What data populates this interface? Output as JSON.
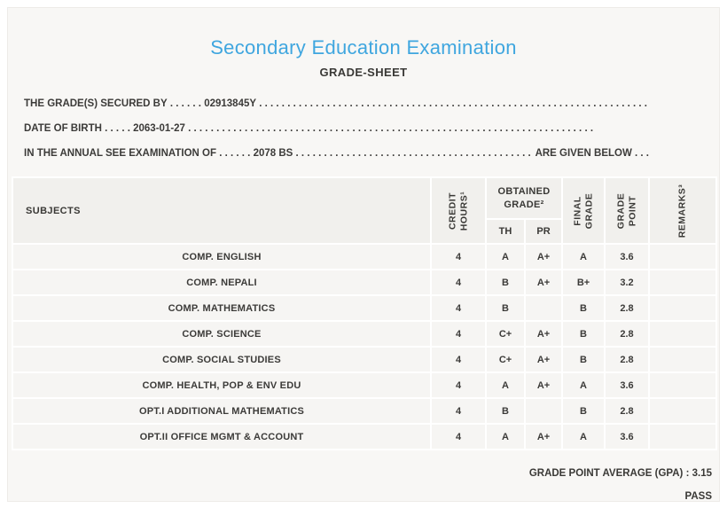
{
  "page": {
    "title": "Secondary Education Examination",
    "subtitle": "GRADE-SHEET"
  },
  "info_lines": [
    {
      "label": "THE GRADE(S) SECURED BY",
      "lead_dots": " . . . . . . ",
      "value": "02913845Y",
      "tail_dots": " . . . . . . . . . . . . . . . . . . . . . . . . . . . . . . . . . . . . . . . . . . . . . . . . . . . . . . . . . . . . . . . . . . . . . . . . ",
      "trail_label": ""
    },
    {
      "label": "DATE OF BIRTH",
      "lead_dots": " . . . . . ",
      "value": "2063-01-27",
      "tail_dots": " . . . . . . . . . . . . . . . . . . . . . . . . . . . . . . . . . . . . . . . . . . . . . . . . . . . . . . . . . . . . . . . . . . . . . . . . ",
      "trail_label": ""
    },
    {
      "label": "IN THE ANNUAL SEE EXAMINATION OF",
      "lead_dots": " . . . . . . ",
      "value": "2078 BS",
      "tail_dots": " . . . . . . . . . . . . . . . . . . . . . . . . . . . . . . . . . . . . . . . . . . . . . . . . . . . . . . . . . . . . . . . . . . . . . . . . ",
      "trail_label": " ARE GIVEN BELOW . . ."
    }
  ],
  "table": {
    "headers": {
      "subjects": "SUBJECTS",
      "credit_hours": "CREDIT\nHOURS¹",
      "obtained_grade": "OBTAINED\nGRADE²",
      "th": "TH",
      "pr": "PR",
      "final_grade": "FINAL\nGRADE",
      "grade_point": "GRADE\nPOINT",
      "remarks": "REMARKS³"
    },
    "rows": [
      {
        "subject": "COMP. ENGLISH",
        "credit": "4",
        "th": "A",
        "pr": "A+",
        "final": "A",
        "point": "3.6",
        "remarks": ""
      },
      {
        "subject": "COMP. NEPALI",
        "credit": "4",
        "th": "B",
        "pr": "A+",
        "final": "B+",
        "point": "3.2",
        "remarks": ""
      },
      {
        "subject": "COMP. MATHEMATICS",
        "credit": "4",
        "th": "B",
        "pr": "",
        "final": "B",
        "point": "2.8",
        "remarks": ""
      },
      {
        "subject": "COMP. SCIENCE",
        "credit": "4",
        "th": "C+",
        "pr": "A+",
        "final": "B",
        "point": "2.8",
        "remarks": ""
      },
      {
        "subject": "COMP. SOCIAL STUDIES",
        "credit": "4",
        "th": "C+",
        "pr": "A+",
        "final": "B",
        "point": "2.8",
        "remarks": ""
      },
      {
        "subject": "COMP. HEALTH, POP & ENV EDU",
        "credit": "4",
        "th": "A",
        "pr": "A+",
        "final": "A",
        "point": "3.6",
        "remarks": ""
      },
      {
        "subject": "OPT.I ADDITIONAL MATHEMATICS",
        "credit": "4",
        "th": "B",
        "pr": "",
        "final": "B",
        "point": "2.8",
        "remarks": ""
      },
      {
        "subject": "OPT.II OFFICE MGMT & ACCOUNT",
        "credit": "4",
        "th": "A",
        "pr": "A+",
        "final": "A",
        "point": "3.6",
        "remarks": ""
      }
    ]
  },
  "footer": {
    "gpa_line": "GRADE POINT AVERAGE (GPA) : 3.15",
    "result": "PASS"
  },
  "colors": {
    "title_blue": "#3fa6df",
    "text": "#3c3b39",
    "card_bg": "#f8f7f5",
    "header_cell_bg": "#f1f0ed",
    "row_cell_bg": "#f6f5f3",
    "separator": "#ffffff"
  }
}
